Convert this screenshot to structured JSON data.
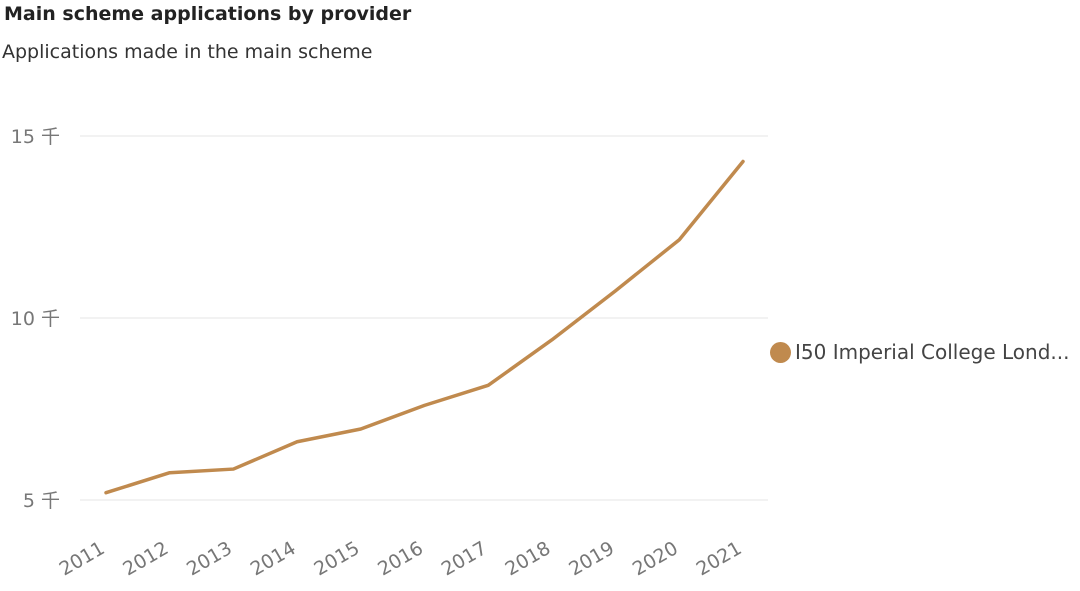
{
  "chart_data": {
    "type": "line",
    "title": "Main scheme applications by provider",
    "subtitle": "Applications made in the main scheme",
    "xlabel": "",
    "ylabel": "",
    "categories": [
      "2011",
      "2012",
      "2013",
      "2014",
      "2015",
      "2016",
      "2017",
      "2018",
      "2019",
      "2020",
      "2021"
    ],
    "ylim": [
      4500,
      16000
    ],
    "y_ticks": [
      {
        "value": 15000,
        "label": "15 千"
      },
      {
        "value": 10000,
        "label": "10 千"
      },
      {
        "value": 5000,
        "label": "5 千"
      }
    ],
    "grid": true,
    "legend_position": "right",
    "series": [
      {
        "name": "I50 Imperial College Lond...",
        "color": "#C08A4E",
        "values": [
          5200,
          5750,
          5850,
          6600,
          6950,
          7600,
          8150,
          9400,
          10750,
          12150,
          14300
        ]
      }
    ]
  }
}
